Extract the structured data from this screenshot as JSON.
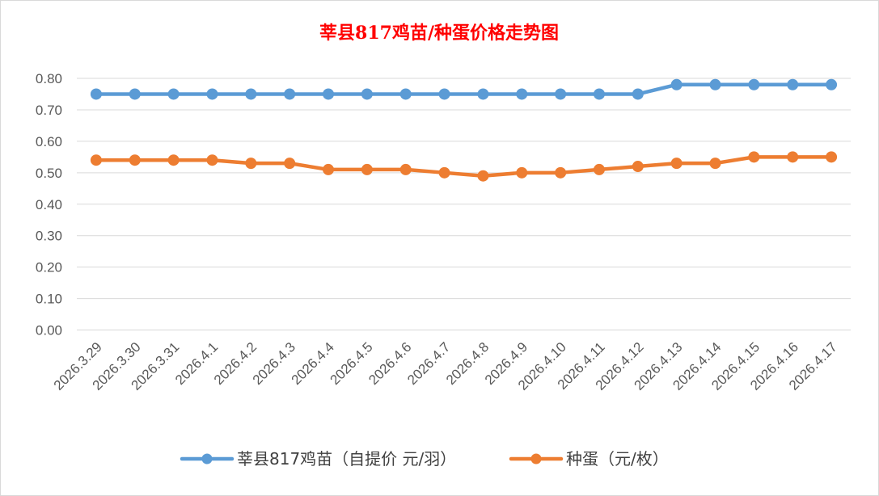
{
  "chart_data": {
    "type": "line",
    "title": "莘县817鸡苗/种蛋价格走势图",
    "xlabel": "",
    "ylabel": "",
    "categories": [
      "2026.3.29",
      "2026.3.30",
      "2026.3.31",
      "2026.4.1",
      "2026.4.2",
      "2026.4.3",
      "2026.4.4",
      "2026.4.5",
      "2026.4.6",
      "2026.4.7",
      "2026.4.8",
      "2026.4.9",
      "2026.4.10",
      "2026.4.11",
      "2026.4.12",
      "2026.4.13",
      "2026.4.14",
      "2026.4.15",
      "2026.4.16",
      "2026.4.17"
    ],
    "ylim": [
      0,
      0.8
    ],
    "yticks": [
      "0.00",
      "0.10",
      "0.20",
      "0.30",
      "0.40",
      "0.50",
      "0.60",
      "0.70",
      "0.80"
    ],
    "grid": true,
    "legend_position": "bottom",
    "series": [
      {
        "name": "莘县817鸡苗（自提价 元/羽）",
        "color": "#5b9bd5",
        "values": [
          0.75,
          0.75,
          0.75,
          0.75,
          0.75,
          0.75,
          0.75,
          0.75,
          0.75,
          0.75,
          0.75,
          0.75,
          0.75,
          0.75,
          0.75,
          0.78,
          0.78,
          0.78,
          0.78,
          0.78
        ]
      },
      {
        "name": "种蛋（元/枚）",
        "color": "#ed7d31",
        "values": [
          0.54,
          0.54,
          0.54,
          0.54,
          0.53,
          0.53,
          0.51,
          0.51,
          0.51,
          0.5,
          0.49,
          0.5,
          0.5,
          0.51,
          0.52,
          0.53,
          0.53,
          0.55,
          0.55,
          0.55
        ]
      }
    ],
    "title_color": "#ff0000"
  }
}
